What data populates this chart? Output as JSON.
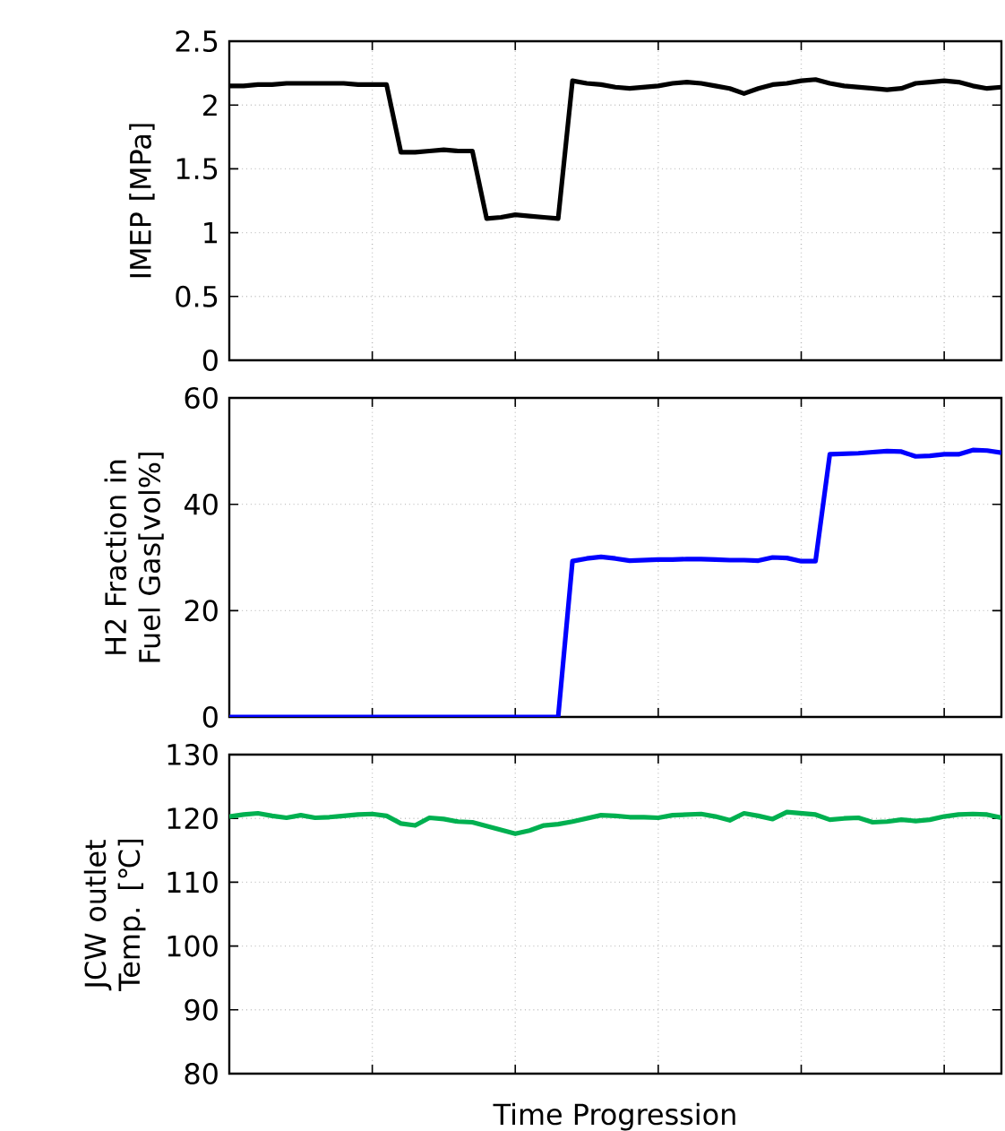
{
  "chart_data": [
    {
      "type": "line",
      "ylabel": "IMEP [MPa]",
      "categories": [
        null,
        null,
        null,
        null,
        null,
        null,
        null,
        null,
        null,
        null,
        null,
        null,
        null,
        null,
        null,
        null,
        null,
        null,
        null,
        null,
        null,
        null,
        null,
        null,
        null,
        null,
        null,
        null,
        null,
        null,
        null,
        null,
        null,
        null,
        null,
        null,
        null,
        null,
        null,
        null,
        null,
        null,
        null,
        null,
        null,
        null,
        null,
        null,
        null,
        null,
        null,
        null,
        null,
        null,
        null
      ],
      "ylim": [
        0,
        2.5
      ],
      "yticks": [
        0,
        0.5,
        1,
        1.5,
        2,
        2.5
      ],
      "grid": true,
      "tick_labels": "y",
      "marker": "none",
      "line_style": "solid",
      "series": [
        {
          "color": "#000000",
          "values": [
            2.15,
            2.15,
            2.16,
            2.16,
            2.17,
            2.17,
            2.17,
            2.17,
            2.17,
            2.16,
            2.16,
            2.16,
            1.63,
            1.63,
            1.64,
            1.65,
            1.64,
            1.64,
            1.11,
            1.12,
            1.14,
            1.13,
            1.12,
            1.11,
            2.19,
            2.17,
            2.16,
            2.14,
            2.13,
            2.14,
            2.15,
            2.17,
            2.18,
            2.17,
            2.15,
            2.13,
            2.09,
            2.13,
            2.16,
            2.17,
            2.19,
            2.2,
            2.17,
            2.15,
            2.14,
            2.13,
            2.12,
            2.13,
            2.17,
            2.18,
            2.19,
            2.18,
            2.15,
            2.13,
            2.14
          ]
        }
      ]
    },
    {
      "type": "line",
      "ylabel": "H2 Fraction in Fuel Gas[vol%]",
      "categories": [
        null,
        null,
        null,
        null,
        null,
        null,
        null,
        null,
        null,
        null,
        null,
        null,
        null,
        null,
        null,
        null,
        null,
        null,
        null,
        null,
        null,
        null,
        null,
        null,
        null,
        null,
        null,
        null,
        null,
        null,
        null,
        null,
        null,
        null,
        null,
        null,
        null,
        null,
        null,
        null,
        null,
        null,
        null,
        null,
        null,
        null,
        null,
        null,
        null,
        null,
        null,
        null,
        null,
        null,
        null
      ],
      "ylim": [
        0,
        60
      ],
      "yticks": [
        0,
        20,
        40,
        60
      ],
      "grid": true,
      "tick_labels": "y",
      "marker": "none",
      "line_style": "solid",
      "series": [
        {
          "color": "#0000ff",
          "values": [
            0,
            0,
            0,
            0,
            0,
            0,
            0,
            0,
            0,
            0,
            0,
            0,
            0,
            0,
            0,
            0,
            0,
            0,
            0,
            0,
            0,
            0,
            0,
            0,
            29.3,
            29.8,
            30.1,
            29.8,
            29.4,
            29.5,
            29.6,
            29.6,
            29.7,
            29.7,
            29.6,
            29.5,
            29.5,
            29.4,
            30.0,
            29.9,
            29.3,
            29.3,
            49.4,
            49.5,
            49.6,
            49.8,
            50.0,
            49.9,
            49.0,
            49.1,
            49.4,
            49.4,
            50.2,
            50.1,
            49.7
          ]
        }
      ]
    },
    {
      "type": "line",
      "ylabel": "JCW outlet Temp. [℃]",
      "xlabel": "Time Progression",
      "categories": [
        null,
        null,
        null,
        null,
        null,
        null,
        null,
        null,
        null,
        null,
        null,
        null,
        null,
        null,
        null,
        null,
        null,
        null,
        null,
        null,
        null,
        null,
        null,
        null,
        null,
        null,
        null,
        null,
        null,
        null,
        null,
        null,
        null,
        null,
        null,
        null,
        null,
        null,
        null,
        null,
        null,
        null,
        null,
        null,
        null,
        null,
        null,
        null,
        null,
        null,
        null,
        null,
        null,
        null,
        null
      ],
      "ylim": [
        80,
        130
      ],
      "yticks": [
        80,
        90,
        100,
        110,
        120,
        130
      ],
      "grid": true,
      "tick_labels": "y",
      "marker": "none",
      "line_style": "solid",
      "series": [
        {
          "color": "#00b050",
          "values": [
            120.3,
            120.6,
            120.8,
            120.4,
            120.1,
            120.5,
            120.1,
            120.2,
            120.4,
            120.6,
            120.7,
            120.4,
            119.2,
            118.9,
            120.1,
            119.9,
            119.5,
            119.4,
            118.8,
            118.2,
            117.6,
            118.1,
            118.9,
            119.1,
            119.5,
            120.0,
            120.5,
            120.4,
            120.2,
            120.2,
            120.1,
            120.5,
            120.6,
            120.7,
            120.3,
            119.7,
            120.8,
            120.4,
            119.9,
            121.0,
            120.8,
            120.6,
            119.8,
            120.0,
            120.1,
            119.4,
            119.5,
            119.8,
            119.6,
            119.8,
            120.3,
            120.6,
            120.7,
            120.6,
            120.1
          ]
        }
      ]
    }
  ]
}
